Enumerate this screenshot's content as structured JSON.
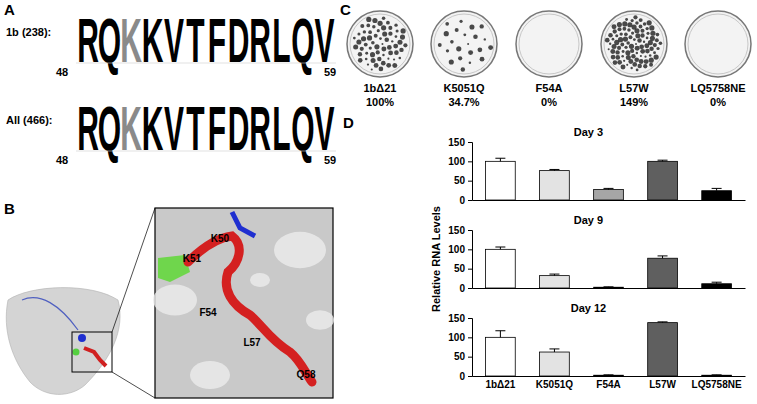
{
  "panel_a": {
    "letter": "A",
    "rows": [
      {
        "label": "1b (238):",
        "residues": [
          "R",
          "Q",
          "K",
          "K",
          "V",
          "T",
          "F",
          "D",
          "R",
          "L",
          "Q",
          "V"
        ],
        "colors": [
          "#000000",
          "#000000",
          "#8a8a8a",
          "#000000",
          "#000000",
          "#000000",
          "#000000",
          "#000000",
          "#000000",
          "#000000",
          "#000000",
          "#000000"
        ],
        "start": 48,
        "end": 59
      },
      {
        "label": "All (466):",
        "residues": [
          "R",
          "Q",
          "K",
          "K",
          "V",
          "T",
          "F",
          "D",
          "R",
          "L",
          "Q",
          "V"
        ],
        "colors": [
          "#000000",
          "#000000",
          "#8a8a8a",
          "#000000",
          "#000000",
          "#000000",
          "#000000",
          "#000000",
          "#000000",
          "#000000",
          "#000000",
          "#000000"
        ],
        "start": 48,
        "end": 59
      }
    ]
  },
  "panel_b": {
    "letter": "B",
    "residue_labels": [
      "K50",
      "K51",
      "F54",
      "L57",
      "Q58"
    ]
  },
  "panel_c": {
    "letter": "C",
    "plates": [
      {
        "name": "1bΔ21",
        "value": 100,
        "label": "100%"
      },
      {
        "name": "K5051Q",
        "value": 34.7,
        "label": "34.7%"
      },
      {
        "name": "F54A",
        "value": 0,
        "label": "0%"
      },
      {
        "name": "L57W",
        "value": 149,
        "label": "149%"
      },
      {
        "name": "LQ5758NE",
        "value": 0,
        "label": "0%"
      }
    ]
  },
  "panel_d": {
    "letter": "D"
  },
  "chart_data": [
    {
      "type": "bar",
      "title": "Day 3",
      "categories": [
        "1bΔ21",
        "K5051Q",
        "F54A",
        "L57W",
        "LQ5758NE"
      ],
      "values": [
        100,
        76,
        27,
        100,
        24
      ],
      "errors": [
        8,
        3,
        3,
        3,
        6
      ],
      "colors": [
        "#ffffff",
        "#e3e3e3",
        "#a6a6a6",
        "#5f5f5f",
        "#000000"
      ],
      "ylim": [
        0,
        150
      ],
      "yticks": [
        0,
        50,
        100,
        150
      ],
      "tick_labels": "y"
    },
    {
      "type": "bar",
      "title": "Day 9",
      "y_label": "Relative RNA Levels",
      "categories": [
        "1bΔ21",
        "K5051Q",
        "F54A",
        "L57W",
        "LQ5758NE"
      ],
      "values": [
        100,
        32,
        2,
        77,
        11
      ],
      "errors": [
        6,
        4,
        1,
        6,
        4
      ],
      "colors": [
        "#ffffff",
        "#e3e3e3",
        "#a6a6a6",
        "#5f5f5f",
        "#000000"
      ],
      "ylim": [
        0,
        150
      ],
      "yticks": [
        0,
        50,
        100,
        150
      ],
      "tick_labels": "y"
    },
    {
      "type": "bar",
      "title": "Day 12",
      "categories": [
        "1bΔ21",
        "K5051Q",
        "F54A",
        "L57W",
        "LQ5758NE"
      ],
      "values": [
        100,
        62,
        2,
        138,
        2
      ],
      "errors": [
        17,
        8,
        1,
        2,
        1
      ],
      "colors": [
        "#ffffff",
        "#e3e3e3",
        "#a6a6a6",
        "#5f5f5f",
        "#000000"
      ],
      "ylim": [
        0,
        150
      ],
      "yticks": [
        0,
        50,
        100,
        150
      ]
    }
  ]
}
